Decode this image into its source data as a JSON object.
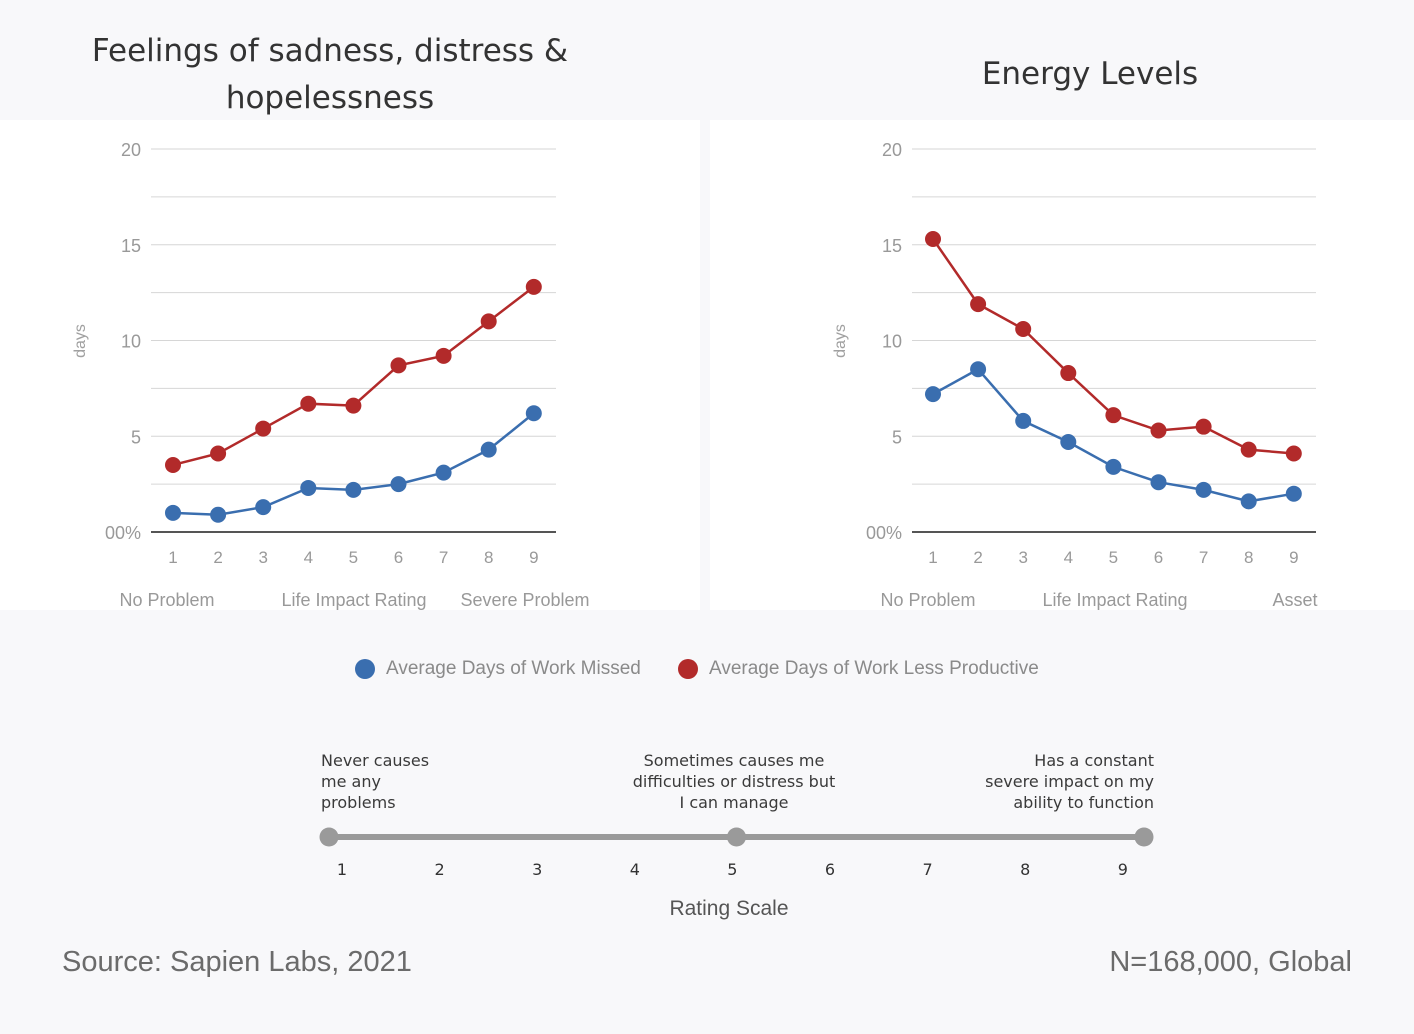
{
  "chart_data": [
    {
      "type": "line",
      "title": "Feelings of sadness, distress & hopelessness",
      "ylabel": "days",
      "xlabel": "Life Impact Rating",
      "x_end_labels": {
        "left": "No Problem",
        "right": "Severe Problem"
      },
      "categories": [
        "1",
        "2",
        "3",
        "4",
        "5",
        "6",
        "7",
        "8",
        "9"
      ],
      "ylim": [
        0,
        20
      ],
      "y_ticks": [
        "00%",
        "5",
        "10",
        "15",
        "20"
      ],
      "grid": true,
      "series": [
        {
          "name": "Average Days of Work Missed",
          "color": "#3a6eaf",
          "values": [
            1.0,
            0.9,
            1.3,
            2.3,
            2.2,
            2.5,
            3.1,
            4.3,
            6.2
          ]
        },
        {
          "name": "Average Days of Work Less Productive",
          "color": "#b22a2a",
          "values": [
            3.5,
            4.1,
            5.4,
            6.7,
            6.6,
            8.7,
            9.2,
            11.0,
            12.8
          ]
        }
      ]
    },
    {
      "type": "line",
      "title": "Energy Levels",
      "ylabel": "days",
      "xlabel": "Life Impact Rating",
      "x_end_labels": {
        "left": "No Problem",
        "right": "Asset"
      },
      "categories": [
        "1",
        "2",
        "3",
        "4",
        "5",
        "6",
        "7",
        "8",
        "9"
      ],
      "ylim": [
        0,
        20
      ],
      "y_ticks": [
        "00%",
        "5",
        "10",
        "15",
        "20"
      ],
      "grid": true,
      "series": [
        {
          "name": "Average Days of Work Missed",
          "color": "#3a6eaf",
          "values": [
            7.2,
            8.5,
            5.8,
            4.7,
            3.4,
            2.6,
            2.2,
            1.6,
            2.0
          ]
        },
        {
          "name": "Average Days of Work Less Productive",
          "color": "#b22a2a",
          "values": [
            15.3,
            11.9,
            10.6,
            8.3,
            6.1,
            5.3,
            5.5,
            4.3,
            4.1
          ]
        }
      ]
    }
  ],
  "legend": {
    "placement": "bottom-center",
    "items": [
      {
        "label": "Average Days of Work Missed",
        "color": "#3a6eaf"
      },
      {
        "label": "Average Days of Work Less Productive",
        "color": "#b22a2a"
      }
    ]
  },
  "rating_scale": {
    "title": "Rating Scale",
    "ticks": [
      "1",
      "2",
      "3",
      "4",
      "5",
      "6",
      "7",
      "8",
      "9"
    ],
    "marked_points": [
      1,
      5,
      9
    ],
    "notes": {
      "low": "Never causes\nme any\nproblems",
      "mid": "Sometimes causes me\ndifficulties or distress but\nI can manage",
      "high": "Has a constant\nsevere impact on my\nability to function"
    }
  },
  "footer": {
    "source": "Source: Sapien Labs, 2021",
    "sample": "N=168,000, Global"
  }
}
